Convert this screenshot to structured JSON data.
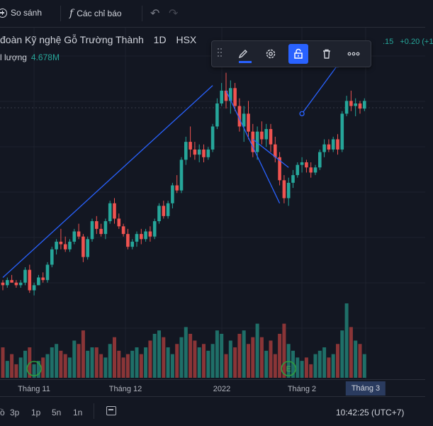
{
  "topbar": {
    "compare_label": "So sánh",
    "indicators_label": "Các chỉ báo"
  },
  "legend": {
    "title": "đoàn Kỹ nghệ Gỗ Trường Thành",
    "interval": "1D",
    "exchange": "HSX",
    "volume_label": "l lượng",
    "volume_value": "4.678M",
    "last_change": ".15",
    "change": "+0.20 (+1"
  },
  "drawing_toolbar": {
    "icons": [
      "drag-handle-icon",
      "pencil-icon",
      "gear-icon",
      "lock-icon",
      "trash-icon",
      "more-icon"
    ],
    "active": "lock-icon"
  },
  "time_axis": {
    "labels": [
      "Tháng 11",
      "Tháng 12",
      "2022",
      "Tháng 2",
      "Tháng 3"
    ],
    "highlighted": "Tháng 3"
  },
  "bottombar": {
    "ranges": [
      "3p",
      "1p",
      "5n",
      "1n"
    ],
    "partial_left": "ồ",
    "clock": "10:42:25 (UTC+7)"
  },
  "colors": {
    "background": "#131722",
    "up": "#26a69a",
    "down": "#ef5350",
    "trendline": "#2962ff",
    "active_button": "#2962ff"
  },
  "chart_data": {
    "type": "candlestick",
    "title": "",
    "interval": "1D",
    "ohlc": [
      [
        1.7,
        1.8,
        1.4,
        1.6
      ],
      [
        1.6,
        1.9,
        1.5,
        1.8
      ],
      [
        1.8,
        2.0,
        1.7,
        1.7
      ],
      [
        1.7,
        1.8,
        1.5,
        1.6
      ],
      [
        1.6,
        1.8,
        1.5,
        1.7
      ],
      [
        1.7,
        2.3,
        1.6,
        2.2
      ],
      [
        2.2,
        2.4,
        1.3,
        1.4
      ],
      [
        1.4,
        1.7,
        1.2,
        1.6
      ],
      [
        1.6,
        2.0,
        1.6,
        1.9
      ],
      [
        1.9,
        2.1,
        1.7,
        1.8
      ],
      [
        1.8,
        2.5,
        1.7,
        2.4
      ],
      [
        2.4,
        3.1,
        2.3,
        3.0
      ],
      [
        3.0,
        3.4,
        2.8,
        3.3
      ],
      [
        3.3,
        3.8,
        3.0,
        3.2
      ],
      [
        3.2,
        3.5,
        2.9,
        3.0
      ],
      [
        3.0,
        3.4,
        2.9,
        3.3
      ],
      [
        3.3,
        3.8,
        3.2,
        3.7
      ],
      [
        3.7,
        4.0,
        3.4,
        3.5
      ],
      [
        3.5,
        3.6,
        2.5,
        2.7
      ],
      [
        2.7,
        3.5,
        2.6,
        3.4
      ],
      [
        3.4,
        4.2,
        3.3,
        4.1
      ],
      [
        4.1,
        4.3,
        3.6,
        3.8
      ],
      [
        3.8,
        4.0,
        3.5,
        3.6
      ],
      [
        3.6,
        4.2,
        3.4,
        4.1
      ],
      [
        4.1,
        4.9,
        4.0,
        4.8
      ],
      [
        4.8,
        5.0,
        4.0,
        4.2
      ],
      [
        4.2,
        4.4,
        3.8,
        3.9
      ],
      [
        3.9,
        4.0,
        3.5,
        3.6
      ],
      [
        3.6,
        3.8,
        3.0,
        3.1
      ],
      [
        3.1,
        3.4,
        3.0,
        3.3
      ],
      [
        3.3,
        3.7,
        3.1,
        3.6
      ],
      [
        3.6,
        3.8,
        3.2,
        3.4
      ],
      [
        3.4,
        3.8,
        3.3,
        3.7
      ],
      [
        3.7,
        3.9,
        3.3,
        3.5
      ],
      [
        3.5,
        4.2,
        3.4,
        4.1
      ],
      [
        4.1,
        4.8,
        4.0,
        4.7
      ],
      [
        4.7,
        4.9,
        4.2,
        4.3
      ],
      [
        4.3,
        4.9,
        4.2,
        4.8
      ],
      [
        4.8,
        5.6,
        4.6,
        5.5
      ],
      [
        5.5,
        5.9,
        5.2,
        5.3
      ],
      [
        5.3,
        6.6,
        5.2,
        6.5
      ],
      [
        6.5,
        7.4,
        6.3,
        7.2
      ],
      [
        7.2,
        7.8,
        6.6,
        6.9
      ],
      [
        6.9,
        7.2,
        6.5,
        6.7
      ],
      [
        6.7,
        7.1,
        6.4,
        6.9
      ],
      [
        6.9,
        7.1,
        6.4,
        6.6
      ],
      [
        6.6,
        7.0,
        6.5,
        6.9
      ],
      [
        6.9,
        7.9,
        6.8,
        7.8
      ],
      [
        7.8,
        8.9,
        7.7,
        8.7
      ],
      [
        8.7,
        9.5,
        8.6,
        9.2
      ],
      [
        9.2,
        9.9,
        8.5,
        8.8
      ],
      [
        8.8,
        9.6,
        8.3,
        9.3
      ],
      [
        9.3,
        9.5,
        8.4,
        8.6
      ],
      [
        8.6,
        8.9,
        7.6,
        7.8
      ],
      [
        7.8,
        8.6,
        7.2,
        8.3
      ],
      [
        8.3,
        8.8,
        7.3,
        7.6
      ],
      [
        7.6,
        7.9,
        6.6,
        6.8
      ],
      [
        6.8,
        7.8,
        6.5,
        7.6
      ],
      [
        7.6,
        8.0,
        7.1,
        7.3
      ],
      [
        7.3,
        7.9,
        7.0,
        7.7
      ],
      [
        7.7,
        7.9,
        6.8,
        7.1
      ],
      [
        7.1,
        7.4,
        6.4,
        6.6
      ],
      [
        6.6,
        6.8,
        5.5,
        5.7
      ],
      [
        5.7,
        5.9,
        4.8,
        5.0
      ],
      [
        5.0,
        5.8,
        4.7,
        5.6
      ],
      [
        5.6,
        6.1,
        5.4,
        5.9
      ],
      [
        5.9,
        6.4,
        5.8,
        6.3
      ],
      [
        6.3,
        6.6,
        6.0,
        6.4
      ],
      [
        6.4,
        6.5,
        6.0,
        6.2
      ],
      [
        6.2,
        6.4,
        5.8,
        6.0
      ],
      [
        6.0,
        6.3,
        5.9,
        6.2
      ],
      [
        6.2,
        6.9,
        6.1,
        6.8
      ],
      [
        6.8,
        7.3,
        6.6,
        7.1
      ],
      [
        7.1,
        7.3,
        6.8,
        6.9
      ],
      [
        6.9,
        7.4,
        6.8,
        7.3
      ],
      [
        7.3,
        7.5,
        6.7,
        6.9
      ],
      [
        6.9,
        8.4,
        6.8,
        8.3
      ],
      [
        8.3,
        9.0,
        8.2,
        8.8
      ],
      [
        8.8,
        9.2,
        8.4,
        8.6
      ],
      [
        8.6,
        8.9,
        8.2,
        8.7
      ],
      [
        8.7,
        8.8,
        8.3,
        8.5
      ],
      [
        8.5,
        8.9,
        8.4,
        8.8
      ]
    ],
    "volume": [
      9,
      5,
      7,
      4,
      6,
      8,
      9,
      4,
      5,
      6,
      7,
      9,
      10,
      8,
      7,
      6,
      11,
      10,
      14,
      8,
      9,
      9,
      7,
      6,
      10,
      12,
      8,
      6,
      7,
      8,
      9,
      7,
      9,
      11,
      13,
      14,
      12,
      9,
      7,
      10,
      12,
      15,
      13,
      11,
      9,
      10,
      8,
      10,
      14,
      13,
      7,
      11,
      9,
      13,
      14,
      10,
      12,
      16,
      12,
      8,
      11,
      7,
      13,
      16,
      10,
      8,
      6,
      5,
      6,
      4,
      7,
      8,
      9,
      6,
      7,
      10,
      14,
      22,
      15,
      11,
      10,
      7
    ],
    "trendlines": [
      {
        "from": [
          0,
          1.9
        ],
        "to": [
          47,
          9.4
        ]
      },
      {
        "from": [
          50,
          9.2
        ],
        "to": [
          62,
          4.8
        ]
      },
      {
        "from": [
          56,
          7.3
        ],
        "to": [
          64,
          6.2
        ]
      },
      {
        "from": [
          67,
          8.3
        ],
        "to": [
          75,
          10.2
        ]
      }
    ],
    "markers": [
      {
        "index": 7,
        "label": "circle"
      },
      {
        "index": 64,
        "label": "E"
      }
    ],
    "grid": true
  }
}
